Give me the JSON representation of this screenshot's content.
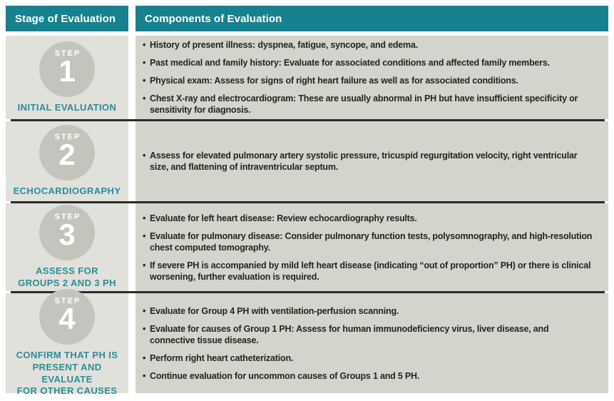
{
  "header": {
    "stage_col": "Stage of Evaluation",
    "components_col": "Components of Evaluation"
  },
  "bullet_char": "•",
  "steps": [
    {
      "step_word": "STEP",
      "number": "1",
      "label_lines": [
        "INITIAL EVALUATION"
      ],
      "bullets": [
        "History of present illness: dyspnea, fatigue, syncope, and edema.",
        "Past medical and family history: Evaluate for associated conditions and affected family members.",
        "Physical exam: Assess for signs of right heart failure as well as for associated conditions.",
        "Chest X-ray and electrocardiogram: These are usually abnormal in PH but have insufficient specificity or sensitivity for diagnosis."
      ]
    },
    {
      "step_word": "STEP",
      "number": "2",
      "label_lines": [
        "ECHOCARDIOGRAPHY"
      ],
      "bullets": [
        "Assess for elevated pulmonary artery systolic pressure, tricuspid regurgitation velocity, right ventricular size, and flattening of intraventricular septum."
      ]
    },
    {
      "step_word": "STEP",
      "number": "3",
      "label_lines": [
        "ASSESS FOR",
        "GROUPS 2 AND 3 PH"
      ],
      "bullets": [
        "Evaluate for left heart disease: Review echocardiography results.",
        "Evaluate for pulmonary disease: Consider pulmonary function tests, polysomnography, and high-resolution chest computed tomography.",
        "If severe PH is accompanied by mild left heart disease (indicating “out of proportion” PH) or there is clinical worsening, further evaluation is required."
      ]
    },
    {
      "step_word": "STEP",
      "number": "4",
      "label_lines": [
        "CONFIRM THAT PH IS",
        "PRESENT AND EVALUATE",
        "FOR OTHER CAUSES"
      ],
      "bullets": [
        "Evaluate for Group 4 PH with ventilation-perfusion scanning.",
        "Evaluate for causes of Group 1 PH: Assess for human immunodeficiency virus, liver disease, and connective tissue disease.",
        "Perform right heart catheterization.",
        "Continue evaluation for uncommon causes of Groups 1 and 5 PH."
      ]
    }
  ],
  "colors": {
    "header_teal": "#17818e",
    "stage_label_teal": "#2c8c98",
    "stage_cell_bg": "#e0e1db",
    "components_cell_bg": "#d3d4cc",
    "step_circle_gray": "#c3c5bc",
    "body_text": "#272324",
    "divider": "#2d2a2b",
    "page_bg": "#ffffff"
  }
}
